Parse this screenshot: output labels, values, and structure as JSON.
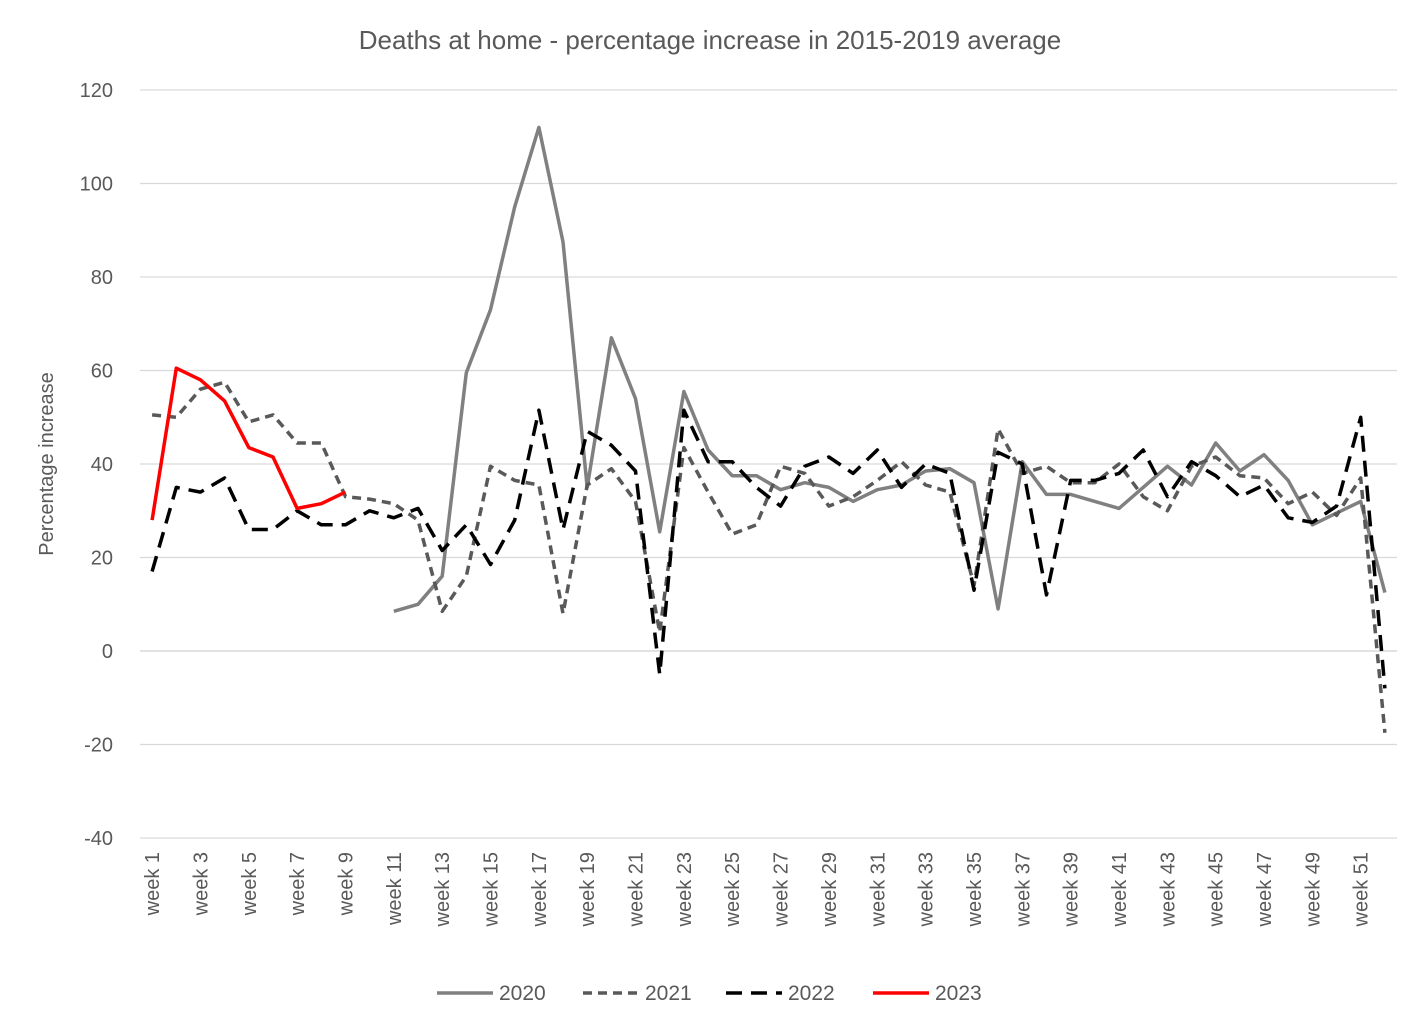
{
  "chart_data": {
    "type": "line",
    "title": "Deaths at home - percentage increase in 2015-2019 average",
    "xlabel": "",
    "ylabel": "Percentage increase",
    "ylim": [
      -40,
      120
    ],
    "yticks": [
      -40,
      -20,
      0,
      20,
      40,
      60,
      80,
      100,
      120
    ],
    "grid": true,
    "legend_position": "bottom",
    "categories": [
      "week 1",
      "week 2",
      "week 3",
      "week 4",
      "week 5",
      "week 6",
      "week 7",
      "week 8",
      "week 9",
      "week 10",
      "week 11",
      "week 12",
      "week 13",
      "week 14",
      "week 15",
      "week 16",
      "week 17",
      "week 18",
      "week 19",
      "week 20",
      "week 21",
      "week 22",
      "week 23",
      "week 24",
      "week 25",
      "week 26",
      "week 27",
      "week 28",
      "week 29",
      "week 30",
      "week 31",
      "week 32",
      "week 33",
      "week 34",
      "week 35",
      "week 36",
      "week 37",
      "week 38",
      "week 39",
      "week 40",
      "week 41",
      "week 42",
      "week 43",
      "week 44",
      "week 45",
      "week 46",
      "week 47",
      "week 48",
      "week 49",
      "week 50",
      "week 51",
      "week 52"
    ],
    "tick_labels": [
      "week 1",
      "week 3",
      "week 5",
      "week 7",
      "week 9",
      "week 11",
      "week 13",
      "week 15",
      "week 17",
      "week 19",
      "week 21",
      "week 23",
      "week 25",
      "week 27",
      "week 29",
      "week 31",
      "week 33",
      "week 35",
      "week 37",
      "week 39",
      "week 41",
      "week 43",
      "week 45",
      "week 47",
      "week 49",
      "week 51"
    ],
    "series": [
      {
        "name": "2020",
        "color": "#808080",
        "style": "solid",
        "values": [
          null,
          null,
          null,
          null,
          null,
          null,
          null,
          null,
          null,
          null,
          8.5,
          10,
          16,
          59.5,
          73,
          95,
          112,
          87.5,
          35,
          67,
          54,
          25.5,
          55.5,
          43,
          37.5,
          37.5,
          34.5,
          36,
          35,
          32,
          34.5,
          35.5,
          38.5,
          39,
          36,
          9,
          40.5,
          33.5,
          33.5,
          32,
          30.5,
          35,
          39.5,
          35.5,
          44.5,
          38.5,
          42,
          36.5,
          27,
          29.5,
          32,
          12.5
        ]
      },
      {
        "name": "2021",
        "color": "#595959",
        "style": "dashed",
        "values": [
          50.5,
          50,
          56,
          57.5,
          49,
          50.5,
          44.5,
          44.5,
          33,
          32.5,
          31.5,
          28,
          8.5,
          16,
          39.5,
          36.5,
          35.5,
          8,
          35.5,
          39,
          32,
          4,
          43.5,
          34,
          25,
          27,
          39.5,
          38,
          31,
          33,
          36.5,
          40.5,
          35.5,
          34,
          14,
          47.5,
          38,
          39.5,
          36,
          36,
          40,
          33,
          30,
          39.5,
          41.5,
          37.5,
          37,
          31.5,
          34,
          29,
          37,
          -17.5
        ]
      },
      {
        "name": "2022",
        "color": "#000000",
        "style": "dashed",
        "values": [
          17,
          35,
          34,
          37,
          26,
          26,
          30,
          27,
          27,
          30,
          28.5,
          30.5,
          21.5,
          27,
          18.5,
          28,
          51.5,
          26,
          47,
          44,
          38.5,
          -5,
          51.5,
          40.5,
          40.5,
          35,
          31,
          39.5,
          41.5,
          38,
          43,
          35,
          40,
          38,
          13,
          42.5,
          40,
          12,
          36.5,
          36.5,
          38,
          43,
          33,
          40.5,
          37.5,
          33,
          35.5,
          28.5,
          27.5,
          31,
          50,
          -8
        ]
      },
      {
        "name": "2023",
        "color": "#ff0000",
        "style": "solid",
        "values": [
          28,
          60.5,
          58,
          53.5,
          43.5,
          41.5,
          30.5,
          31.5,
          34,
          null,
          null,
          null,
          null,
          null,
          null,
          null,
          null,
          null,
          null,
          null,
          null,
          null,
          null,
          null,
          null,
          null,
          null,
          null,
          null,
          null,
          null,
          null,
          null,
          null,
          null,
          null,
          null,
          null,
          null,
          null,
          null,
          null,
          null,
          null,
          null,
          null,
          null,
          null,
          null,
          null,
          null,
          null
        ]
      }
    ]
  }
}
